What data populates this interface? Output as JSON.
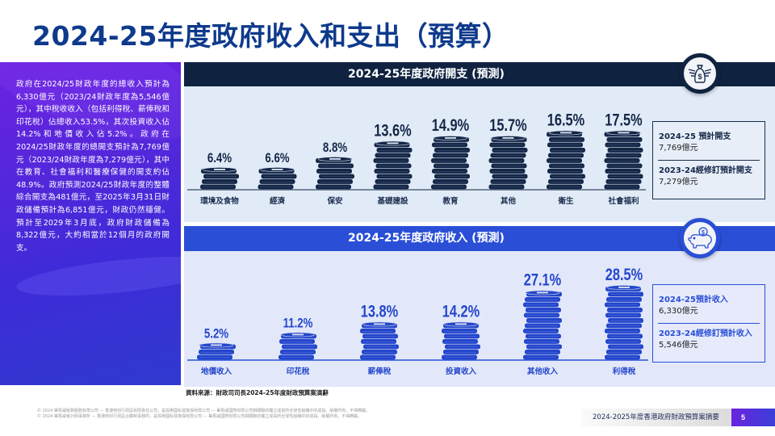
{
  "page": {
    "title": "2024-25年度政府收入和支出（預算）",
    "page_number": "5",
    "footer_label": "2024-2025年度香港政府財政預算案摘要"
  },
  "left_panel": {
    "text": "政府在2024/25財政年度的總收入預計為6,330億元（2023/24財政年度為5,546億元），其中稅收收入（包括利得稅、薪俸稅和印花稅）佔總收入53.5%，其次投資收入佔14.2%和地價收入佔5.2%。政府在2024/25財政年度的總開支預計為7,769億元（2023/24財政年度為7,279億元），其中在教育、社會福利和醫療保健的開支約佔48.9%。政府預測2024/25財政年度的整體綜合開支為481億元，至2025年3月31日財政儲備預計為6,851億元，財政仍然穩健。預計至2029年3月底，政府財政儲備為8,322億元，大約相當於12個月的政府開支。"
  },
  "expenditure": {
    "header": "2024-25年度政府開支 (預測)",
    "icon": "money-bag-wings-icon",
    "summary": {
      "current_label": "2024-25 預計開支",
      "current_value": "7,769億元",
      "previous_label": "2023-24經修訂預計開支",
      "previous_value": "7,279億元"
    },
    "color": "#142747"
  },
  "revenue": {
    "header": "2024-25年度政府收入 (預測)",
    "icon": "piggy-bank-icon",
    "summary": {
      "current_label": "2024-25預計收入",
      "current_value": "6,330億元",
      "previous_label": "2023-24經修訂預計收入",
      "previous_value": "5,546億元"
    },
    "color": "#2446cc"
  },
  "source": "資料來源：財政司司長2024-25年度財政預算案演辭",
  "copyright": [
    "© 2024 畢馬威稅務服務有限公司 — 香港特別行政區有限責任公司，是與英國私營擔保有限公司 — 畢馬威國際有限公司相關聯的獨立成員所全球性組織中的成員。版權所有，不得轉載。",
    "© 2024 畢馬威會計師事務所 — 香港特別行政區合夥制事務所，是與英國私營擔保有限公司 — 畢馬威國際有限公司相關聯的獨立成員所全球性組織中的成員。版權所有，不得轉載。"
  ],
  "chart_data": [
    {
      "type": "bar",
      "title": "2024-25年度政府開支 (預測)",
      "categories": [
        "環境及食物",
        "經濟",
        "保安",
        "基礎建設",
        "教育",
        "其他",
        "衛生",
        "社會福利"
      ],
      "values": [
        6.4,
        6.6,
        8.8,
        13.6,
        14.9,
        15.7,
        16.5,
        17.5
      ],
      "labels": [
        "6.4%",
        "6.6%",
        "8.8%",
        "13.6%",
        "14.9%",
        "15.7%",
        "16.5%",
        "17.5%"
      ],
      "unit": "%",
      "xlabel": "",
      "ylabel": "",
      "ylim": [
        0,
        20
      ],
      "grid": false,
      "legend": "none"
    },
    {
      "type": "bar",
      "title": "2024-25年度政府收入 (預測)",
      "categories": [
        "地價收入",
        "印花稅",
        "薪俸稅",
        "投資收入",
        "其他收入",
        "利得稅"
      ],
      "values": [
        5.2,
        11.2,
        13.8,
        14.2,
        27.1,
        28.5
      ],
      "labels": [
        "5.2%",
        "11.2%",
        "13.8%",
        "14.2%",
        "27.1%",
        "28.5%"
      ],
      "unit": "%",
      "xlabel": "",
      "ylabel": "",
      "ylim": [
        0,
        32
      ],
      "grid": false,
      "legend": "none"
    }
  ]
}
